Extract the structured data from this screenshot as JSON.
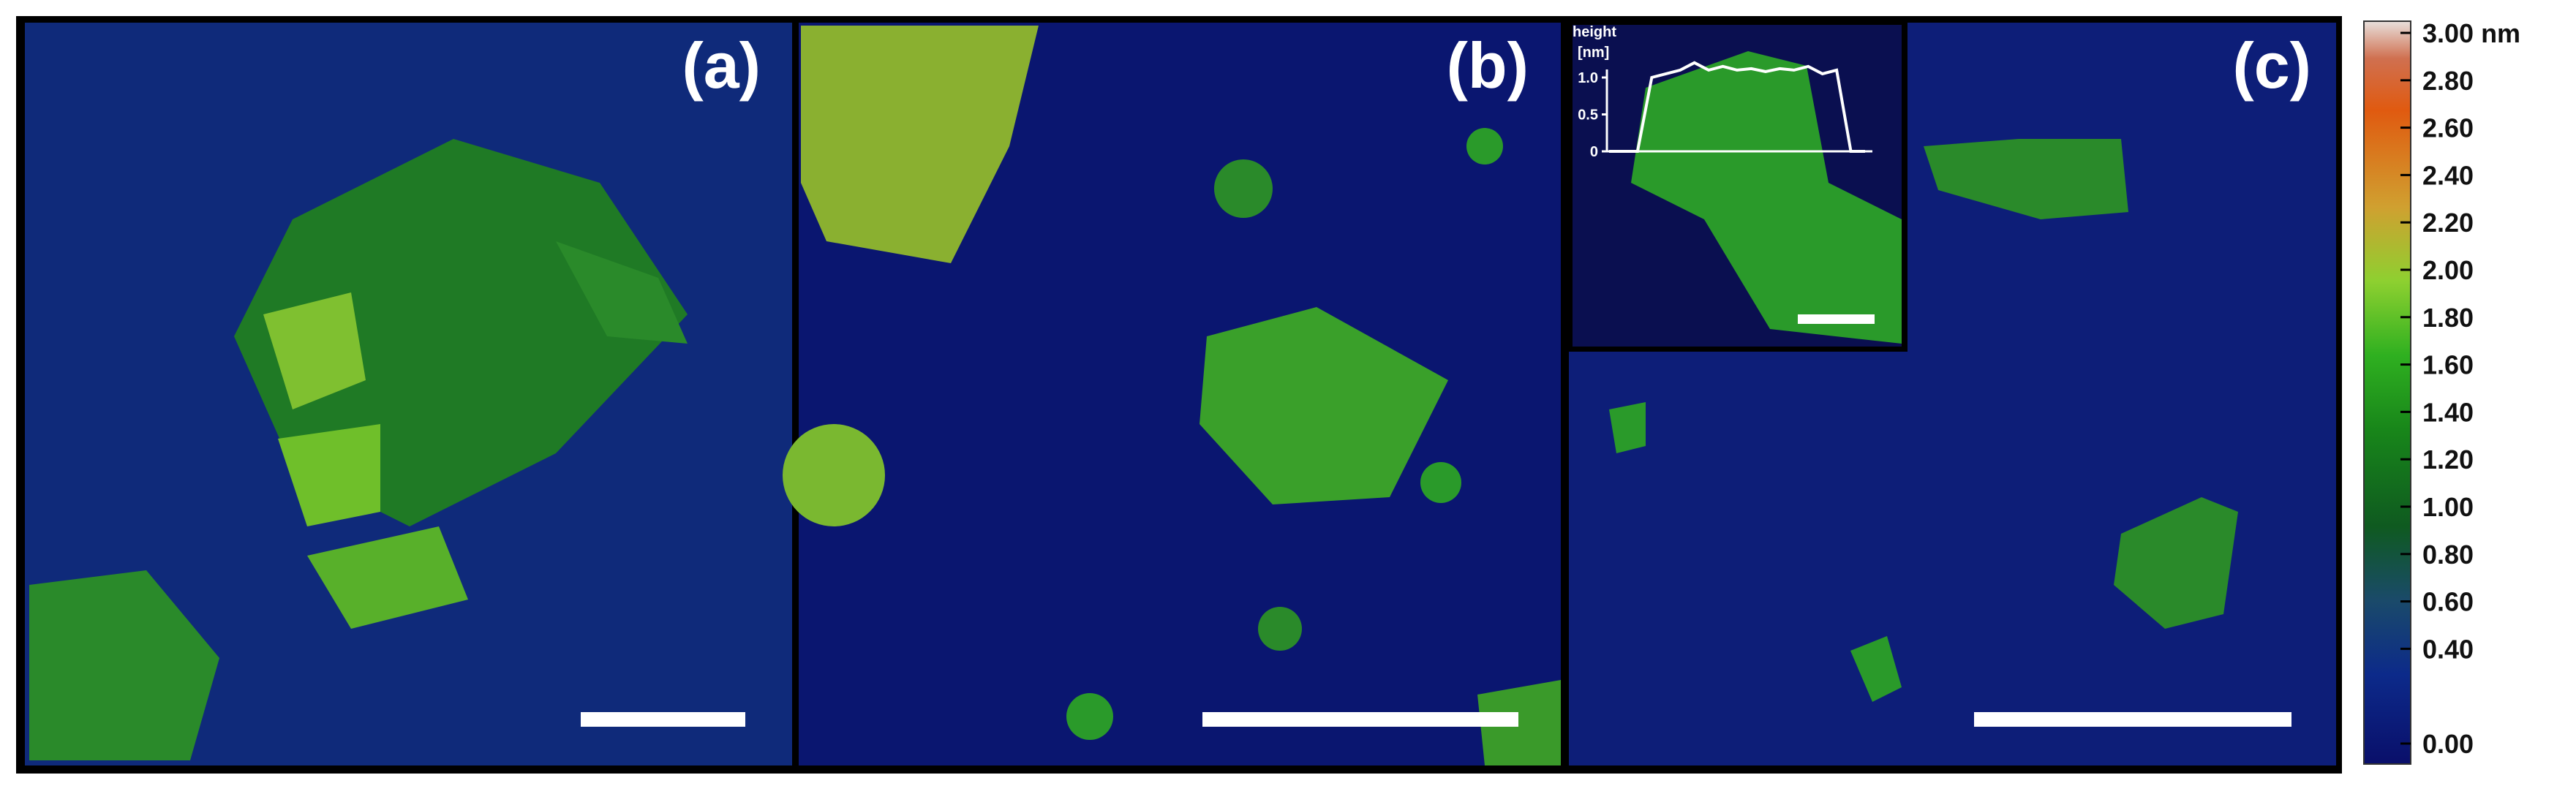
{
  "panels": [
    {
      "label": "(a)"
    },
    {
      "label": "(b)"
    },
    {
      "label": "(c)"
    }
  ],
  "inset": {
    "title": "height",
    "unit": "[nm]",
    "yticks": [
      {
        "value": 1.0,
        "label": "1.0"
      },
      {
        "value": 0.5,
        "label": "0.5"
      },
      0
    ],
    "profile": [
      0,
      0,
      0,
      1.0,
      1.05,
      1.1,
      1.2,
      1.1,
      1.15,
      1.1,
      1.12,
      1.08,
      1.12,
      1.1,
      1.15,
      1.05,
      1.1,
      0,
      0
    ]
  },
  "colorbar": {
    "ticks": [
      {
        "value": 3.0,
        "label": "3.00 nm"
      },
      {
        "value": 2.8,
        "label": "2.80"
      },
      {
        "value": 2.6,
        "label": "2.60"
      },
      {
        "value": 2.4,
        "label": "2.40"
      },
      {
        "value": 2.2,
        "label": "2.20"
      },
      {
        "value": 2.0,
        "label": "2.00"
      },
      {
        "value": 1.8,
        "label": "1.80"
      },
      {
        "value": 1.6,
        "label": "1.60"
      },
      {
        "value": 1.4,
        "label": "1.40"
      },
      {
        "value": 1.2,
        "label": "1.20"
      },
      {
        "value": 1.0,
        "label": "1.00"
      },
      {
        "value": 0.8,
        "label": "0.80"
      },
      {
        "value": 0.6,
        "label": "0.60"
      },
      {
        "value": 0.4,
        "label": "0.40"
      },
      {
        "value": 0.0,
        "label": "0.00"
      }
    ]
  }
}
